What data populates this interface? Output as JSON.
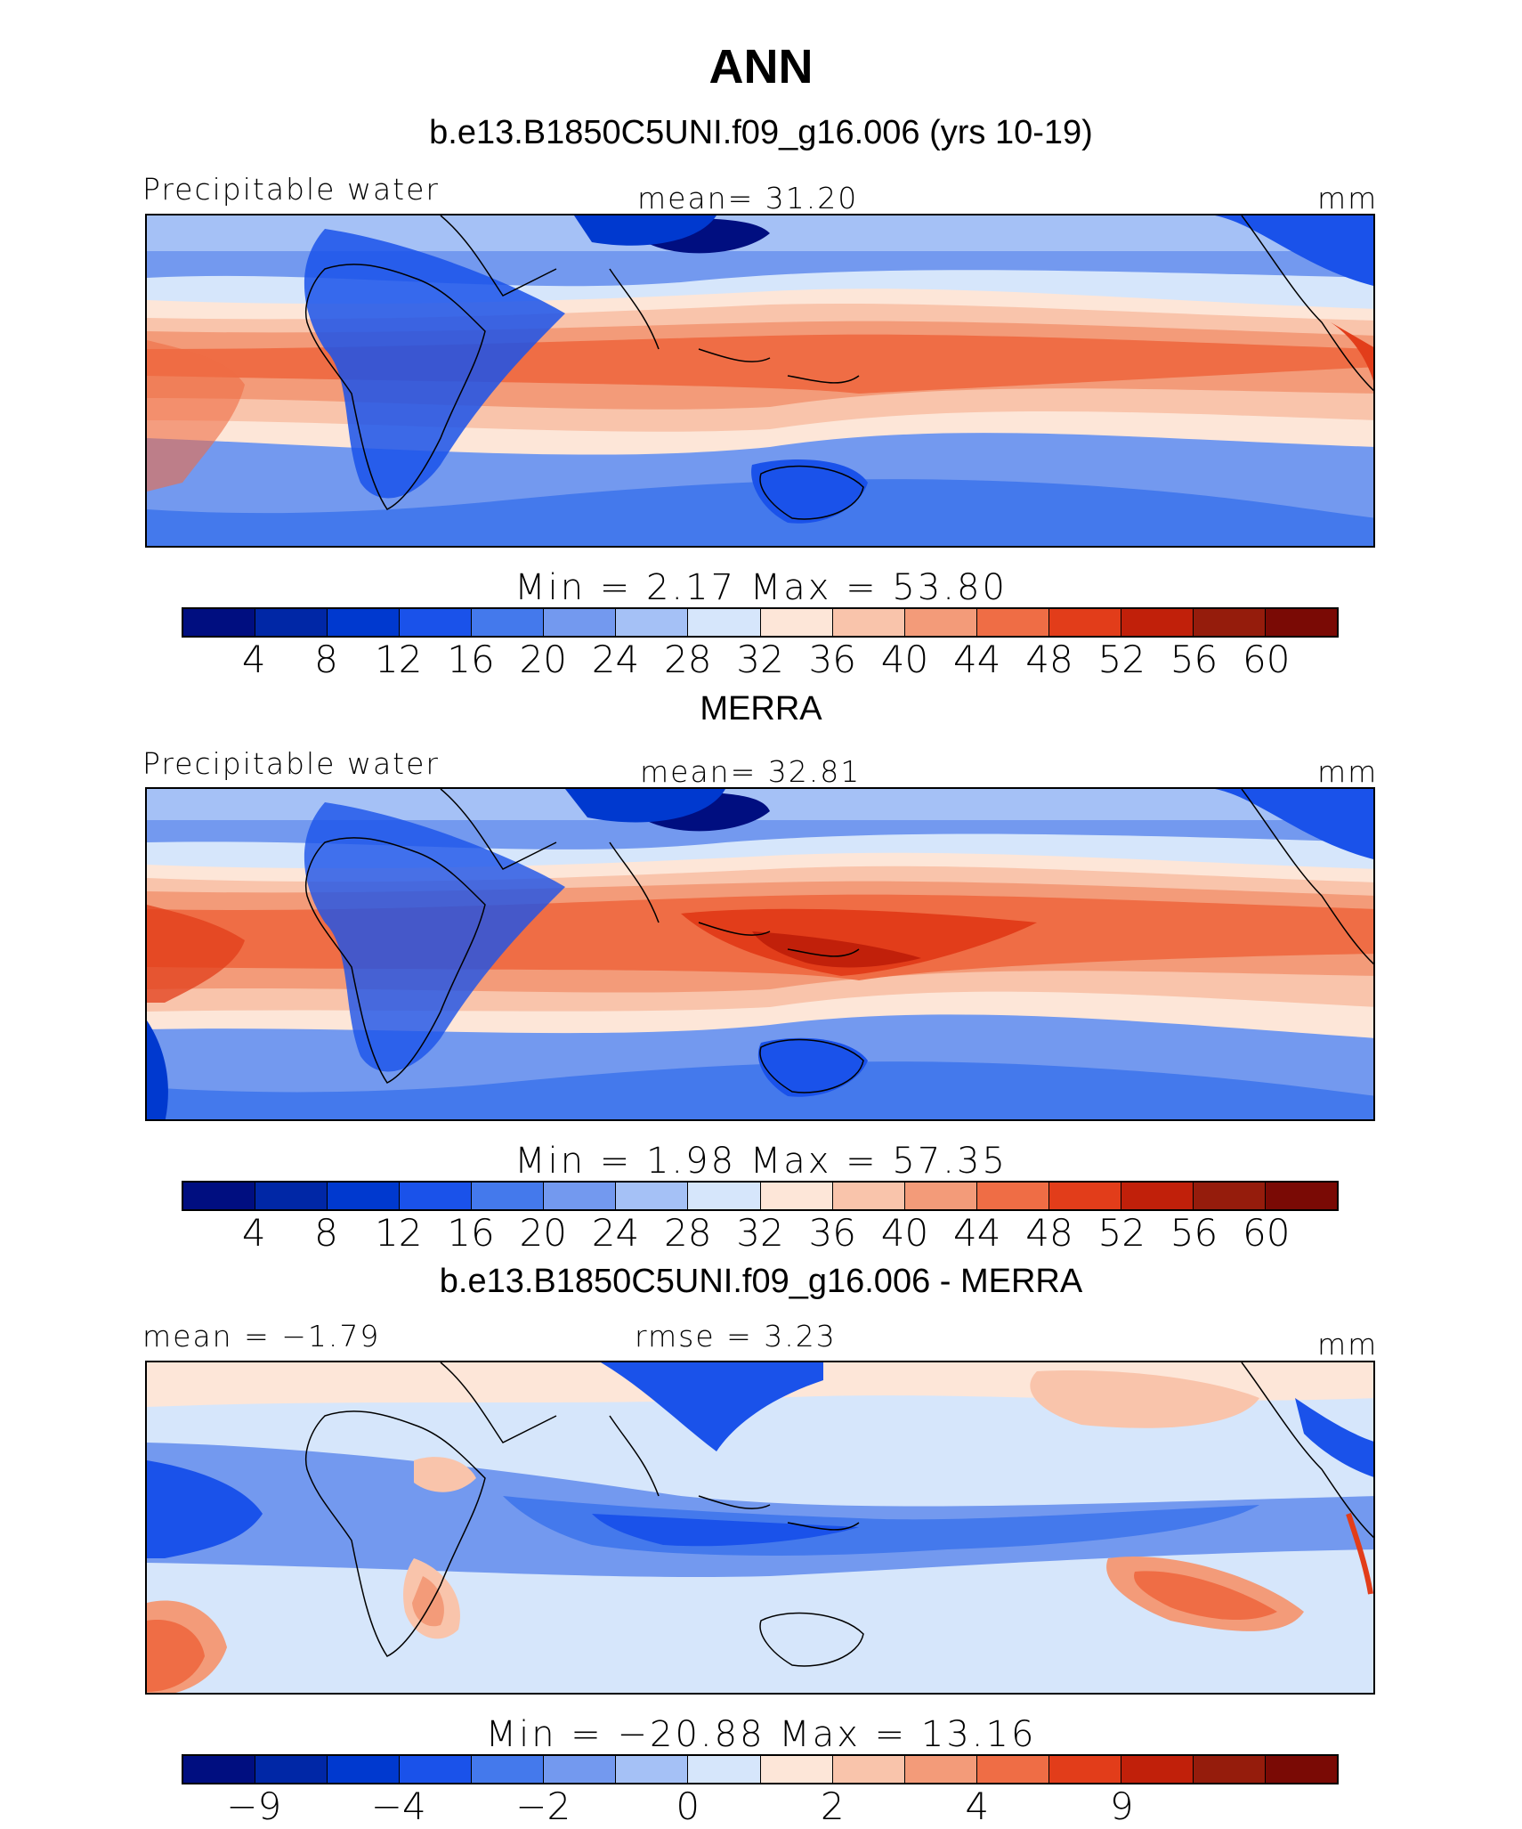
{
  "title": "ANN",
  "colors": [
    "#000e80",
    "#0027a6",
    "#0039cf",
    "#1a52ea",
    "#4479ec",
    "#7399ef",
    "#a5c1f6",
    "#d6e6fb",
    "#fde6d8",
    "#f9c4ab",
    "#f39b79",
    "#ef6d45",
    "#e23d1a",
    "#c1200a",
    "#951c0c",
    "#7a0a05"
  ],
  "panels": [
    {
      "title": "b.e13.B1850C5UNI.f09_g16.006 (yrs 10-19)",
      "left_label": "Precipitable water",
      "center_label": "mean=   31.20",
      "units": "mm",
      "min_max": "Min  =     2.17  Max  =    53.80",
      "colorbar_ticks": [
        "4",
        "8",
        "12",
        "16",
        "20",
        "24",
        "28",
        "32",
        "36",
        "40",
        "44",
        "48",
        "52",
        "56",
        "60"
      ]
    },
    {
      "title": "MERRA",
      "left_label": "Precipitable water",
      "center_label": "mean=   32.81",
      "units": "mm",
      "min_max": "Min  =     1.98  Max  =    57.35",
      "colorbar_ticks": [
        "4",
        "8",
        "12",
        "16",
        "20",
        "24",
        "28",
        "32",
        "36",
        "40",
        "44",
        "48",
        "52",
        "56",
        "60"
      ]
    },
    {
      "title": "b.e13.B1850C5UNI.f09_g16.006 - MERRA",
      "left_label": "mean =  −1.79",
      "center_label": "rmse =     3.23",
      "units": "mm",
      "min_max": "Min  = −20.88  Max  =    13.16",
      "colorbar_ticks": [
        "−9",
        "−4",
        "−2",
        "0",
        "2",
        "4",
        "9"
      ]
    }
  ],
  "chart_data": [
    {
      "type": "heatmap",
      "title": "b.e13.B1850C5UNI.f09_g16.006 (yrs 10-19)",
      "variable": "Precipitable water",
      "units": "mm",
      "mean": 31.2,
      "min": 2.17,
      "max": 53.8,
      "contour_levels": [
        4,
        8,
        12,
        16,
        20,
        24,
        28,
        32,
        36,
        40,
        44,
        48,
        52,
        56,
        60
      ]
    },
    {
      "type": "heatmap",
      "title": "MERRA",
      "variable": "Precipitable water",
      "units": "mm",
      "mean": 32.81,
      "min": 1.98,
      "max": 57.35,
      "contour_levels": [
        4,
        8,
        12,
        16,
        20,
        24,
        28,
        32,
        36,
        40,
        44,
        48,
        52,
        56,
        60
      ]
    },
    {
      "type": "heatmap",
      "title": "b.e13.B1850C5UNI.f09_g16.006 - MERRA",
      "units": "mm",
      "mean": -1.79,
      "rmse": 3.23,
      "min": -20.88,
      "max": 13.16,
      "contour_levels": [
        -9,
        -4,
        -2,
        0,
        2,
        4,
        9
      ]
    }
  ]
}
